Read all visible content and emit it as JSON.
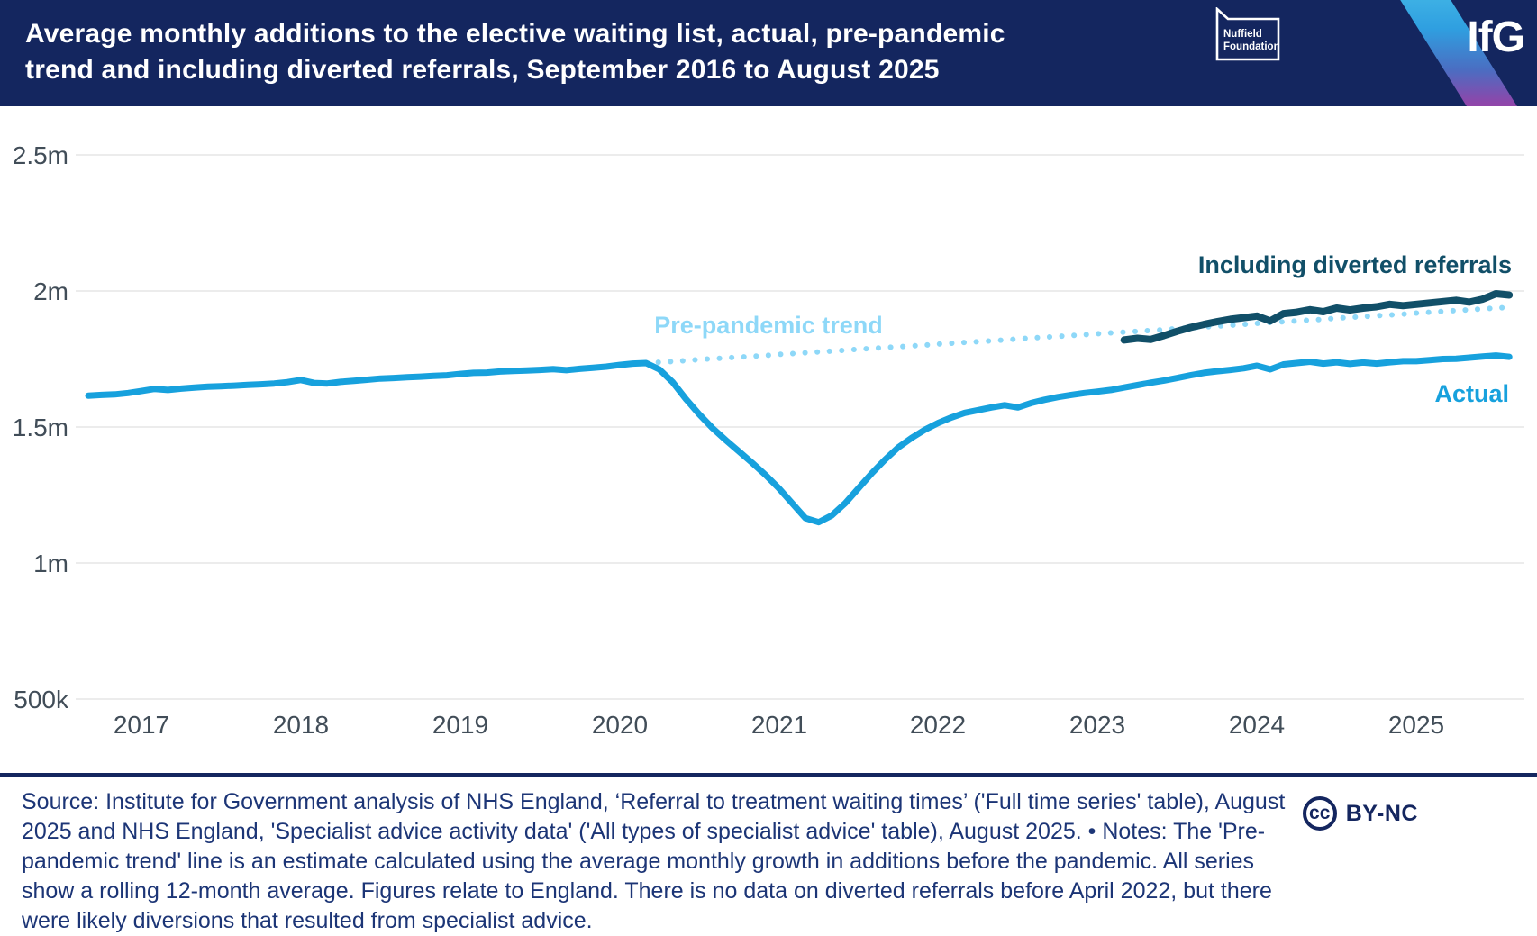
{
  "header": {
    "title_lines": [
      "Average monthly additions to the elective waiting list, actual, pre-pandemic",
      "trend and including diverted referrals, September 2016 to August 2025"
    ],
    "nuffield_logo_lines": [
      "Nuffield",
      "Foundation"
    ],
    "ifg_logo_text": "IfG",
    "colors": {
      "header_bg": "#14265f",
      "stripe_top": "#41b5e6",
      "stripe_bottom": "#a83fa0"
    }
  },
  "footer": {
    "source_text": "Source: Institute for Government analysis of NHS England, ‘Referral to treatment waiting times’ ('Full time series' table), August 2025 and NHS England, 'Specialist advice activity data' ('All types of specialist advice' table), August 2025. • Notes: The 'Pre-pandemic trend' line is an estimate calculated using the average monthly growth in additions before the pandemic. All series show a rolling 12-month average. Figures relate to England. There is no data on diverted referrals before April 2022, but there were likely diversions that resulted from specialist advice.",
    "license_badge": {
      "icon_text": "cc",
      "label": "BY-NC"
    }
  },
  "chart_data": {
    "type": "line",
    "title": "Average monthly additions to the elective waiting list, actual, pre-pandemic trend and including diverted referrals, September 2016 to August 2025",
    "x_start": "2016-09",
    "x_end": "2025-08",
    "x_ticks": [
      "2017",
      "2018",
      "2019",
      "2020",
      "2021",
      "2022",
      "2023",
      "2024",
      "2025"
    ],
    "y_ticks": [
      "2.5m",
      "2m",
      "1.5m",
      "1m",
      "500k"
    ],
    "y_tick_values_millions": [
      2.5,
      2.0,
      1.5,
      1.0,
      0.5
    ],
    "ylim_millions": [
      0.45,
      2.6
    ],
    "grid": "horizontal-only",
    "legend_position": "labels-on-chart",
    "units": "monthly additions, rolling 12-month average, millions",
    "series": [
      {
        "id": "actual",
        "name": "Actual",
        "color": "#17a1dd",
        "style": "solid",
        "start": "2016-09",
        "values_millions": [
          1.615,
          1.618,
          1.62,
          1.625,
          1.632,
          1.64,
          1.636,
          1.641,
          1.645,
          1.648,
          1.65,
          1.652,
          1.655,
          1.657,
          1.66,
          1.665,
          1.673,
          1.662,
          1.66,
          1.666,
          1.67,
          1.674,
          1.678,
          1.68,
          1.683,
          1.685,
          1.688,
          1.69,
          1.695,
          1.699,
          1.7,
          1.704,
          1.706,
          1.708,
          1.71,
          1.713,
          1.709,
          1.714,
          1.718,
          1.722,
          1.728,
          1.733,
          1.735,
          1.712,
          1.665,
          1.603,
          1.547,
          1.496,
          1.452,
          1.41,
          1.368,
          1.324,
          1.275,
          1.22,
          1.165,
          1.15,
          1.175,
          1.22,
          1.275,
          1.33,
          1.38,
          1.425,
          1.46,
          1.49,
          1.515,
          1.535,
          1.552,
          1.562,
          1.572,
          1.58,
          1.572,
          1.588,
          1.6,
          1.61,
          1.618,
          1.625,
          1.63,
          1.636,
          1.645,
          1.654,
          1.663,
          1.671,
          1.68,
          1.69,
          1.699,
          1.705,
          1.71,
          1.716,
          1.725,
          1.712,
          1.73,
          1.735,
          1.74,
          1.733,
          1.738,
          1.732,
          1.737,
          1.733,
          1.738,
          1.742,
          1.742,
          1.746,
          1.75,
          1.751,
          1.755,
          1.759,
          1.763,
          1.758
        ]
      },
      {
        "id": "trend",
        "name": "Pre-pandemic trend",
        "color": "#8ed8f8",
        "style": "dotted",
        "start": "2020-03",
        "values_millions": [
          1.735,
          1.738,
          1.741,
          1.744,
          1.748,
          1.751,
          1.754,
          1.757,
          1.76,
          1.763,
          1.767,
          1.77,
          1.773,
          1.776,
          1.779,
          1.782,
          1.786,
          1.789,
          1.792,
          1.795,
          1.798,
          1.801,
          1.805,
          1.808,
          1.811,
          1.814,
          1.817,
          1.82,
          1.824,
          1.827,
          1.83,
          1.833,
          1.836,
          1.839,
          1.843,
          1.846,
          1.849,
          1.852,
          1.855,
          1.858,
          1.862,
          1.865,
          1.868,
          1.871,
          1.874,
          1.877,
          1.881,
          1.884,
          1.887,
          1.89,
          1.893,
          1.896,
          1.9,
          1.903,
          1.906,
          1.909,
          1.912,
          1.915,
          1.919,
          1.922,
          1.925,
          1.928,
          1.931,
          1.934,
          1.937,
          1.94
        ]
      },
      {
        "id": "diverted",
        "name": "Including diverted referrals",
        "color": "#114f68",
        "style": "solid",
        "start": "2023-03",
        "values_millions": [
          1.82,
          1.826,
          1.822,
          1.836,
          1.852,
          1.866,
          1.877,
          1.887,
          1.896,
          1.902,
          1.908,
          1.89,
          1.917,
          1.922,
          1.931,
          1.924,
          1.937,
          1.93,
          1.937,
          1.942,
          1.951,
          1.946,
          1.951,
          1.956,
          1.961,
          1.966,
          1.959,
          1.97,
          1.99,
          1.985
        ]
      }
    ]
  }
}
